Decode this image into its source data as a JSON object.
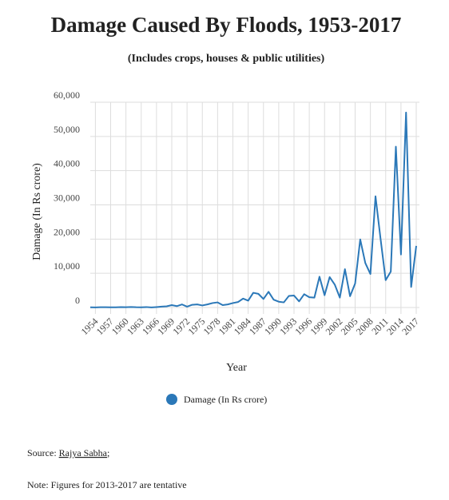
{
  "chart_data": {
    "type": "line",
    "title": "Damage Caused By Floods, 1953-2017",
    "subtitle": "(Includes crops, houses & public utilities)",
    "x_label": "Year",
    "y_label": "Damage (In Rs crore)",
    "x": [
      1953,
      1954,
      1955,
      1956,
      1957,
      1958,
      1959,
      1960,
      1961,
      1962,
      1963,
      1964,
      1965,
      1966,
      1967,
      1968,
      1969,
      1970,
      1971,
      1972,
      1973,
      1974,
      1975,
      1976,
      1977,
      1978,
      1979,
      1980,
      1981,
      1982,
      1983,
      1984,
      1985,
      1986,
      1987,
      1988,
      1989,
      1990,
      1991,
      1992,
      1993,
      1994,
      1995,
      1996,
      1997,
      1998,
      1999,
      2000,
      2001,
      2002,
      2003,
      2004,
      2005,
      2006,
      2007,
      2008,
      2009,
      2010,
      2011,
      2012,
      2013,
      2014,
      2015,
      2016,
      2017
    ],
    "series": [
      {
        "name": "Damage (In Rs crore)",
        "color": "#2b78b8",
        "values": [
          52,
          40,
          100,
          95,
          67,
          45,
          120,
          90,
          140,
          80,
          70,
          130,
          20,
          120,
          250,
          350,
          700,
          400,
          900,
          250,
          800,
          900,
          600,
          900,
          1300,
          1500,
          700,
          900,
          1300,
          1600,
          2600,
          2000,
          4300,
          4000,
          2500,
          4600,
          2300,
          1700,
          1500,
          3400,
          3500,
          1800,
          3900,
          3000,
          2900,
          9000,
          3600,
          8900,
          6700,
          2900,
          11200,
          3300,
          7000,
          19900,
          13000,
          9800,
          32500,
          20000,
          8000,
          10500,
          47000,
          15500,
          57000,
          6000,
          18000
        ]
      }
    ],
    "xlim": [
      1953,
      2017
    ],
    "xticks": [
      1954,
      1957,
      1960,
      1963,
      1966,
      1969,
      1972,
      1975,
      1978,
      1981,
      1984,
      1987,
      1990,
      1993,
      1996,
      1999,
      2002,
      2005,
      2008,
      2011,
      2014,
      2017
    ],
    "ylim": [
      0,
      60000
    ],
    "yticks": [
      0,
      {
        "value": 10000,
        "label": "10,000"
      },
      {
        "value": 20000,
        "label": "20,000"
      },
      {
        "value": 30000,
        "label": "30,000"
      },
      {
        "value": 40000,
        "label": "40,000"
      },
      {
        "value": 50000,
        "label": "50,000"
      },
      {
        "value": 60000,
        "label": "60,000"
      }
    ],
    "grid": true,
    "source_label": "Source:",
    "source_link": "Rajya Sabha",
    "source_end": ";",
    "note": "Note: Figures for 2013-2017 are tentative"
  }
}
